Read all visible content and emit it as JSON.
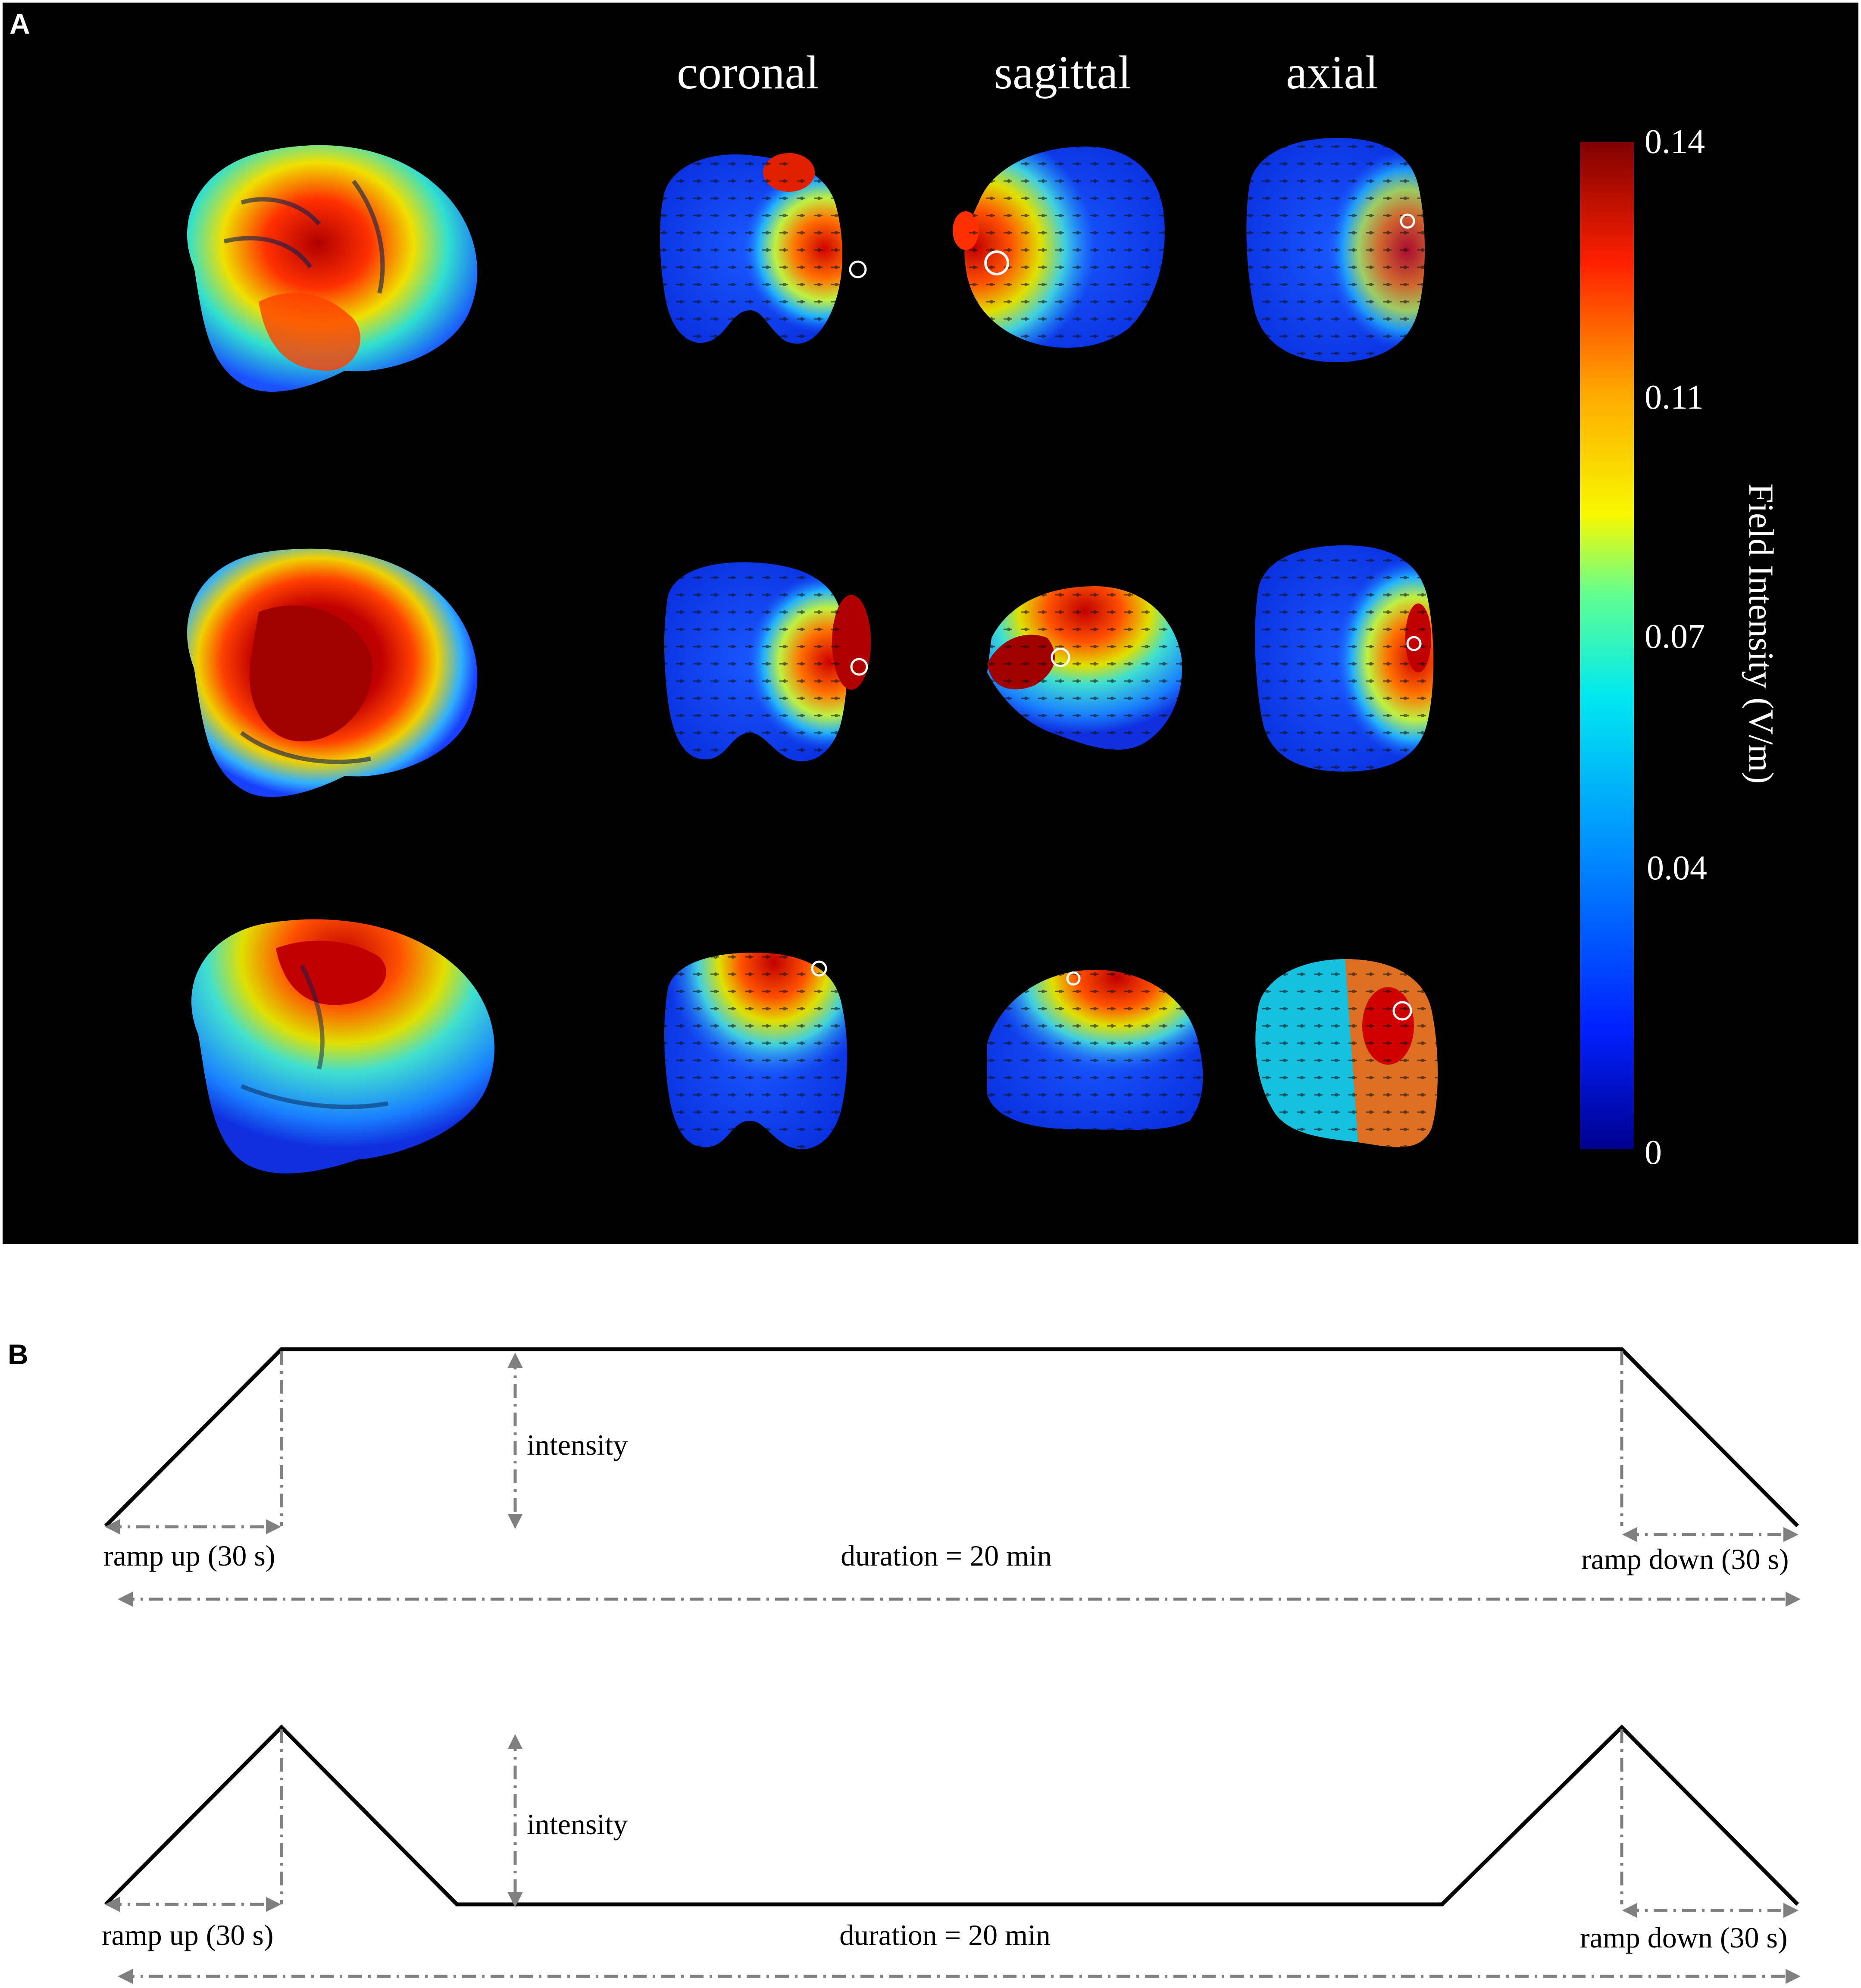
{
  "panel_a": {
    "label": "A",
    "column_headers": [
      "coronal",
      "sagittal",
      "axial"
    ],
    "colorbar": {
      "title": "Field Intensity (V/m)",
      "ticks": [
        "0.14",
        "0.11",
        "0.07",
        "0.04",
        "0"
      ],
      "colors": [
        "#7f0000",
        "#ff2000",
        "#ffaa00",
        "#f8f800",
        "#60ff90",
        "#00e8f0",
        "#0090ff",
        "#0020ff",
        "#00008f"
      ]
    }
  },
  "panel_b": {
    "label": "B",
    "protocols": [
      {
        "shape": "trapezoid",
        "intensity_label": "intensity",
        "ramp_up_label": "ramp up (30 s)",
        "duration_label": "duration = 20 min",
        "ramp_down_label": "ramp down (30 s)"
      },
      {
        "shape": "sham",
        "intensity_label": "intensity",
        "ramp_up_label": "ramp up (30 s)",
        "duration_label": "duration = 20 min",
        "ramp_down_label": "ramp down (30 s)"
      }
    ]
  }
}
